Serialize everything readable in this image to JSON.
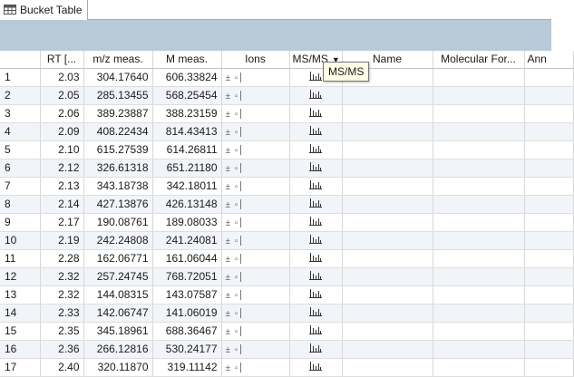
{
  "tab": {
    "label": "Bucket Table",
    "icon": "table-icon"
  },
  "columns": [
    "",
    "RT [...",
    "m/z meas.",
    "M meas.",
    "Ions",
    "MS/MS",
    "Name",
    "Molecular For...",
    "Ann"
  ],
  "tooltip": "MS/MS",
  "icons": {
    "ions": "ion-pattern-icon",
    "msms": "ms-spectrum-icon"
  },
  "rows": [
    {
      "idx": "1",
      "rt": "2.03",
      "mz": "304.17640",
      "m": "606.33824"
    },
    {
      "idx": "2",
      "rt": "2.05",
      "mz": "285.13455",
      "m": "568.25454"
    },
    {
      "idx": "3",
      "rt": "2.06",
      "mz": "389.23887",
      "m": "388.23159"
    },
    {
      "idx": "4",
      "rt": "2.09",
      "mz": "408.22434",
      "m": "814.43413"
    },
    {
      "idx": "5",
      "rt": "2.10",
      "mz": "615.27539",
      "m": "614.26811"
    },
    {
      "idx": "6",
      "rt": "2.12",
      "mz": "326.61318",
      "m": "651.21180"
    },
    {
      "idx": "7",
      "rt": "2.13",
      "mz": "343.18738",
      "m": "342.18011"
    },
    {
      "idx": "8",
      "rt": "2.14",
      "mz": "427.13876",
      "m": "426.13148"
    },
    {
      "idx": "9",
      "rt": "2.17",
      "mz": "190.08761",
      "m": "189.08033"
    },
    {
      "idx": "10",
      "rt": "2.19",
      "mz": "242.24808",
      "m": "241.24081"
    },
    {
      "idx": "11",
      "rt": "2.28",
      "mz": "162.06771",
      "m": "161.06044"
    },
    {
      "idx": "12",
      "rt": "2.32",
      "mz": "257.24745",
      "m": "768.72051"
    },
    {
      "idx": "13",
      "rt": "2.32",
      "mz": "144.08315",
      "m": "143.07587"
    },
    {
      "idx": "14",
      "rt": "2.33",
      "mz": "142.06747",
      "m": "141.06019"
    },
    {
      "idx": "15",
      "rt": "2.35",
      "mz": "345.18961",
      "m": "688.36467"
    },
    {
      "idx": "16",
      "rt": "2.36",
      "mz": "266.12816",
      "m": "530.24177"
    },
    {
      "idx": "17",
      "rt": "2.40",
      "mz": "320.11870",
      "m": "319.11142"
    }
  ]
}
